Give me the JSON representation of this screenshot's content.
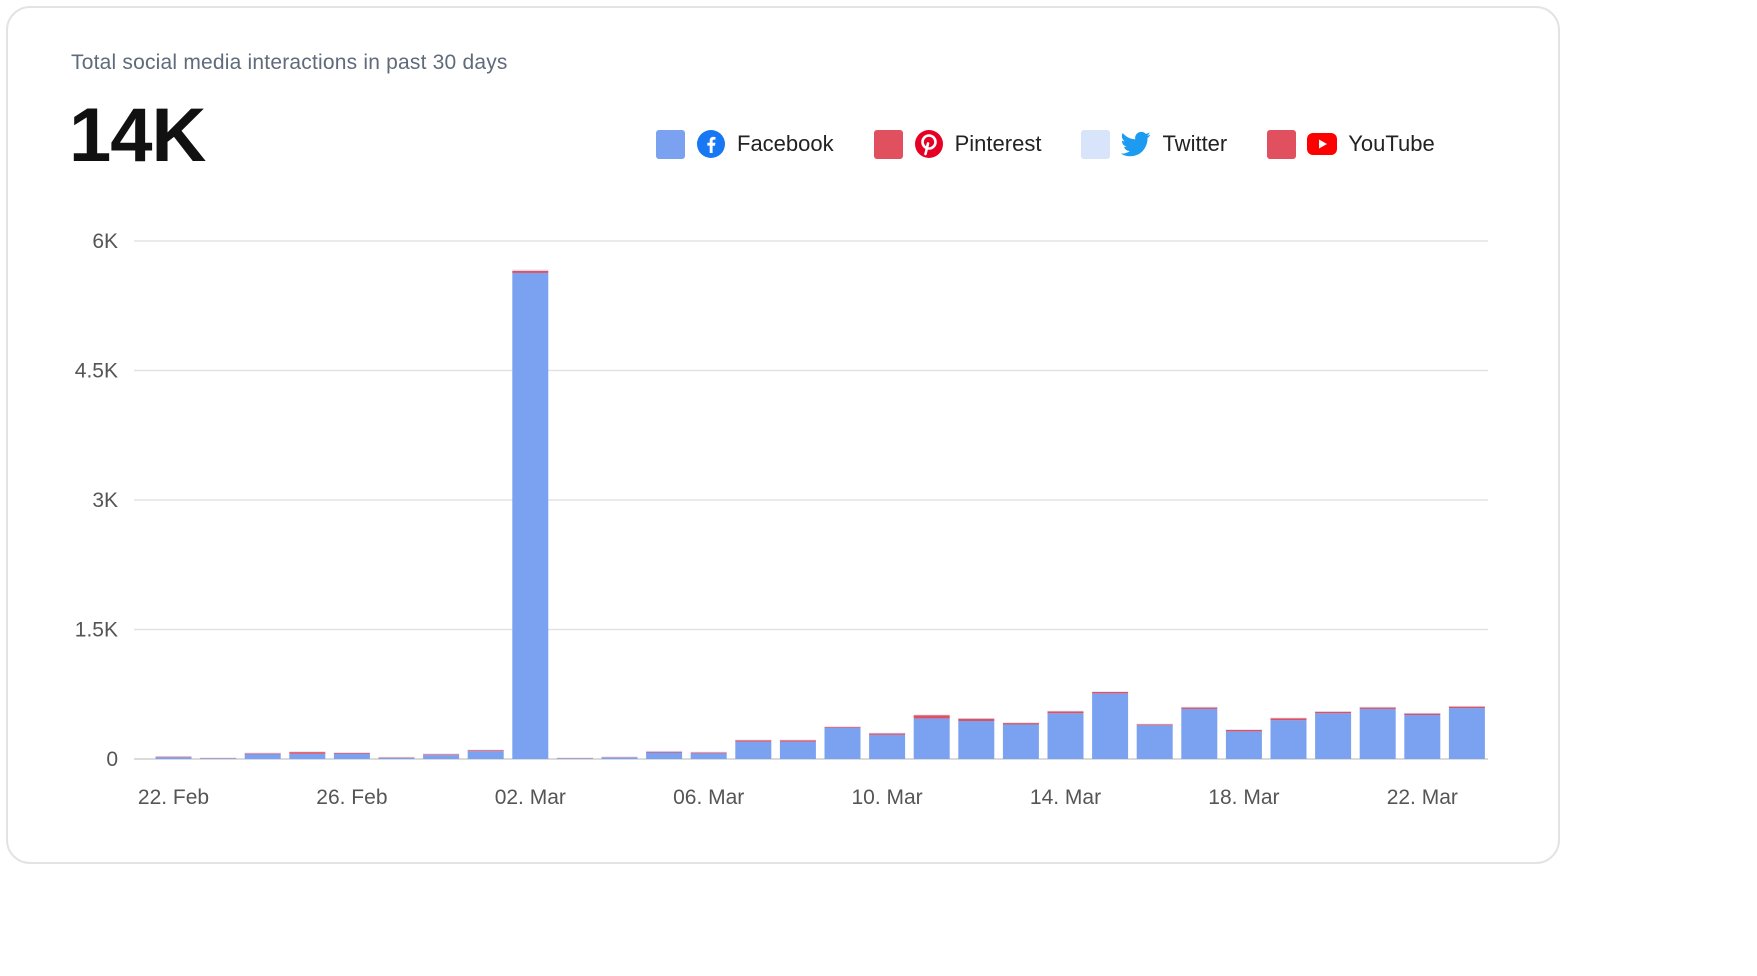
{
  "header": {
    "subtitle": "Total social media interactions in past 30 days",
    "kpi_value": "14K"
  },
  "legend": [
    {
      "label": "Facebook",
      "icon": "facebook-icon",
      "color": "#7aa2f0"
    },
    {
      "label": "Pinterest",
      "icon": "pinterest-icon",
      "color": "#e0505e"
    },
    {
      "label": "Twitter",
      "icon": "twitter-icon",
      "color": "#d8e4fa"
    },
    {
      "label": "YouTube",
      "icon": "youtube-icon",
      "color": "#e0505e"
    }
  ],
  "chart_data": {
    "type": "bar",
    "stacked": true,
    "grid": true,
    "legend_position": "top-right",
    "ylim": [
      0,
      6000
    ],
    "y_ticks": [
      0,
      1500,
      3000,
      4500,
      6000
    ],
    "y_tick_labels": [
      "0",
      "1.5K",
      "3K",
      "4.5K",
      "6K"
    ],
    "categories": [
      "22. Feb",
      "23. Feb",
      "24. Feb",
      "25. Feb",
      "26. Feb",
      "27. Feb",
      "28. Feb",
      "01. Mar",
      "02. Mar",
      "03. Mar",
      "04. Mar",
      "05. Mar",
      "06. Mar",
      "07. Mar",
      "08. Mar",
      "09. Mar",
      "10. Mar",
      "11. Mar",
      "12. Mar",
      "13. Mar",
      "14. Mar",
      "15. Mar",
      "16. Mar",
      "17. Mar",
      "18. Mar",
      "19. Mar",
      "20. Mar",
      "21. Mar",
      "22. Mar",
      "23. Mar"
    ],
    "x_tick_labels": [
      "22. Feb",
      "26. Feb",
      "02. Mar",
      "06. Mar",
      "10. Mar",
      "14. Mar",
      "18. Mar",
      "22. Mar"
    ],
    "x_tick_every": 4,
    "series": [
      {
        "name": "Facebook",
        "color": "#7aa2f0",
        "values": [
          20,
          10,
          60,
          60,
          60,
          15,
          45,
          90,
          5630,
          10,
          20,
          75,
          65,
          200,
          200,
          360,
          280,
          470,
          440,
          400,
          530,
          760,
          390,
          580,
          320,
          450,
          530,
          580,
          510,
          590
        ]
      },
      {
        "name": "Pinterest",
        "color": "#e0505e",
        "values": [
          10,
          5,
          5,
          20,
          10,
          5,
          10,
          15,
          25,
          5,
          5,
          10,
          10,
          20,
          20,
          10,
          20,
          40,
          30,
          20,
          25,
          20,
          15,
          20,
          20,
          25,
          20,
          20,
          20,
          20
        ]
      },
      {
        "name": "Twitter",
        "color": "#d8e4fa",
        "values": [
          5,
          3,
          10,
          10,
          10,
          5,
          10,
          5,
          15,
          3,
          3,
          10,
          10,
          5,
          5,
          10,
          5,
          5,
          5,
          5,
          5,
          5,
          5,
          5,
          5,
          5,
          5,
          5,
          5,
          5
        ]
      },
      {
        "name": "YouTube",
        "color": "#e0505e",
        "values": [
          0,
          0,
          0,
          0,
          0,
          0,
          0,
          0,
          0,
          0,
          0,
          0,
          0,
          0,
          0,
          0,
          0,
          0,
          0,
          0,
          0,
          0,
          0,
          0,
          0,
          0,
          0,
          0,
          0,
          0
        ]
      }
    ]
  }
}
